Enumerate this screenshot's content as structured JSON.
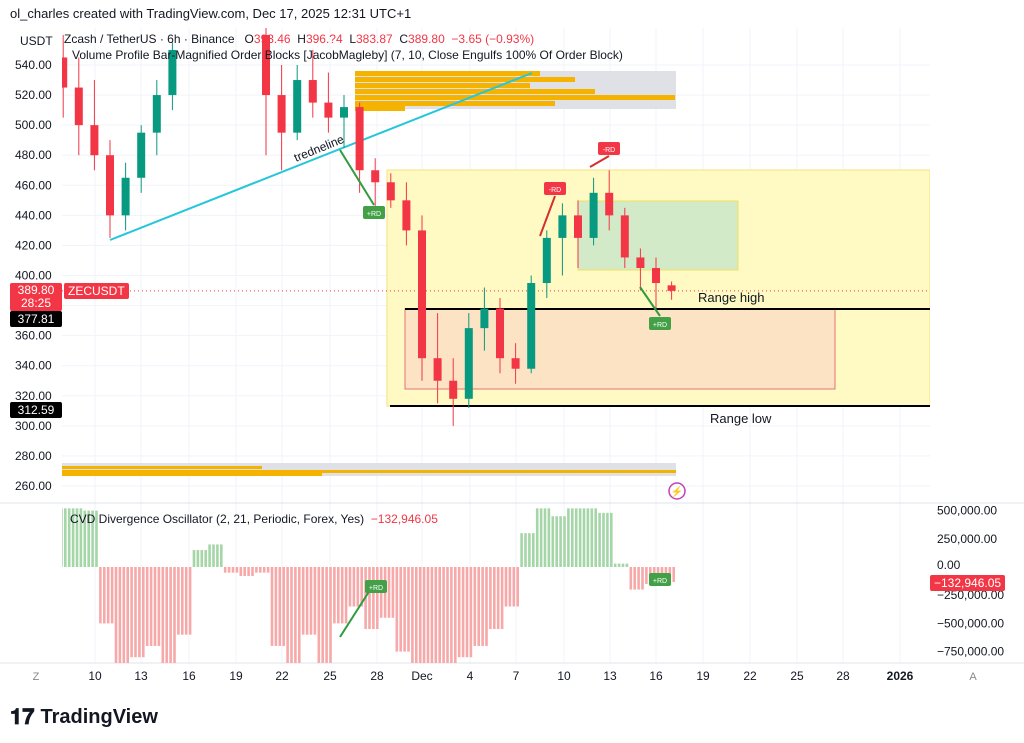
{
  "credit": "ol_charles created with TradingView.com, Dec 17, 2025 12:31 UTC+1",
  "currency": "USDT",
  "legend": {
    "symbol": "Zcash / TetherUS · 6h · Binance",
    "o_label": "O",
    "o": "393.46",
    "h_label": "H",
    "h": "396.?4",
    "l_label": "L",
    "l": "383.87",
    "c_label": "C",
    "c": "389.80",
    "change": "−3.65 (−0.93%)",
    "indicator": "Volume Profile Bar-Magnified Order Blocks [JacobMagleby] (7, 10, Close Engulfs 100% Of Order Block)"
  },
  "oscillator": {
    "title": "CVD Divergence Oscillator (2, 21, Periodic, Forex, Yes)",
    "value": "−132,946.05",
    "axis_labels": [
      "500,000.00",
      "250,000.00",
      "0.00",
      "−250,000.00",
      "−500,000.00",
      "−750,000.00"
    ],
    "axis_values": [
      500000,
      250000,
      0,
      -250000,
      -500000,
      -750000
    ],
    "current_tag": "−132,946.05"
  },
  "price_tags": {
    "last": "389.80",
    "countdown": "28:25",
    "symbol_tag": "ZECUSDT",
    "range_high": "377.81",
    "range_low": "312.59"
  },
  "annotations": {
    "trendline": "tredneline",
    "range_high": "Range high",
    "range_low": "Range low",
    "bear_div": "-RD",
    "bull_div": "+RD"
  },
  "time_axis": {
    "labels": [
      "10",
      "13",
      "16",
      "19",
      "22",
      "25",
      "28",
      "Dec",
      "4",
      "7",
      "10",
      "13",
      "16",
      "19",
      "22",
      "25",
      "28",
      "2026"
    ],
    "left_btn": "Z",
    "right_btn": "A"
  },
  "brand": "TradingView",
  "colors": {
    "up": "#089981",
    "down": "#f23645",
    "range_box": "#fff9c4",
    "ob_bull": "#c8e6c9",
    "ob_bear": "#fce0c4",
    "trendline": "#26c6da"
  },
  "chart_data": {
    "type": "candlestick",
    "ylim": [
      250,
      550
    ],
    "y_ticks": [
      260,
      280,
      300,
      320,
      340,
      360,
      380,
      400,
      420,
      440,
      460,
      480,
      500,
      520,
      540
    ],
    "candles": [
      [
        "Nov 8",
        545,
        560,
        505,
        525
      ],
      [
        "Nov 9",
        525,
        545,
        480,
        500
      ],
      [
        "Nov 10",
        500,
        530,
        470,
        480
      ],
      [
        "Nov 11",
        480,
        490,
        425,
        440
      ],
      [
        "Nov 12",
        440,
        475,
        430,
        465
      ],
      [
        "Nov 13",
        465,
        500,
        455,
        495
      ],
      [
        "Nov 14",
        495,
        530,
        480,
        520
      ],
      [
        "Nov 15",
        520,
        555,
        510,
        550
      ],
      [
        "Nov 21",
        560,
        565,
        480,
        520
      ],
      [
        "Nov 22",
        520,
        540,
        470,
        495
      ],
      [
        "Nov 23",
        495,
        540,
        490,
        530
      ],
      [
        "Nov 24",
        530,
        550,
        505,
        515
      ],
      [
        "Nov 25",
        515,
        535,
        495,
        505
      ],
      [
        "Nov 26",
        505,
        520,
        485,
        512
      ],
      [
        "Nov 27",
        512,
        515,
        455,
        470
      ],
      [
        "Nov 28",
        470,
        478,
        440,
        462
      ],
      [
        "Nov 29",
        462,
        468,
        445,
        450
      ],
      [
        "Nov 30",
        450,
        462,
        420,
        430
      ],
      [
        "Dec 1",
        430,
        440,
        330,
        345
      ],
      [
        "Dec 2",
        345,
        375,
        315,
        330
      ],
      [
        "Dec 3",
        330,
        345,
        300,
        318
      ],
      [
        "Dec 4",
        318,
        375,
        312,
        365
      ],
      [
        "Dec 5",
        365,
        392,
        350,
        378
      ],
      [
        "Dec 6",
        378,
        385,
        335,
        345
      ],
      [
        "Dec 7",
        345,
        355,
        328,
        338
      ],
      [
        "Dec 8",
        338,
        400,
        335,
        395
      ],
      [
        "Dec 9",
        395,
        430,
        385,
        425
      ],
      [
        "Dec 10",
        425,
        448,
        400,
        440
      ],
      [
        "Dec 11",
        440,
        450,
        405,
        425
      ],
      [
        "Dec 12",
        425,
        465,
        420,
        455
      ],
      [
        "Dec 13",
        455,
        470,
        430,
        440
      ],
      [
        "Dec 14",
        440,
        445,
        405,
        412
      ],
      [
        "Dec 15",
        412,
        418,
        390,
        405
      ],
      [
        "Dec 16",
        405,
        412,
        378,
        395
      ],
      [
        "Dec 17",
        393.46,
        396,
        383.87,
        389.8
      ]
    ],
    "cvd": [
      [
        "Nov 8",
        520000
      ],
      [
        "Nov 9",
        520000
      ],
      [
        "Nov 10",
        500000
      ],
      [
        "Nov 11",
        -500000
      ],
      [
        "Nov 12",
        -880000
      ],
      [
        "Nov 13",
        -800000
      ],
      [
        "Nov 14",
        -700000
      ],
      [
        "Nov 15",
        -880000
      ],
      [
        "Nov 16",
        -600000
      ],
      [
        "Nov 17",
        150000
      ],
      [
        "Nov 18",
        200000
      ],
      [
        "Nov 19",
        -50000
      ],
      [
        "Nov 20",
        -80000
      ],
      [
        "Nov 21",
        -50000
      ],
      [
        "Nov 22",
        -700000
      ],
      [
        "Nov 23",
        -880000
      ],
      [
        "Nov 24",
        -600000
      ],
      [
        "Nov 25",
        -850000
      ],
      [
        "Nov 26",
        -500000
      ],
      [
        "Nov 27",
        -350000
      ],
      [
        "Nov 28",
        -550000
      ],
      [
        "Nov 29",
        -450000
      ],
      [
        "Nov 30",
        -750000
      ],
      [
        "Dec 1",
        -880000
      ],
      [
        "Dec 2",
        -880000
      ],
      [
        "Dec 3",
        -880000
      ],
      [
        "Dec 4",
        -800000
      ],
      [
        "Dec 5",
        -700000
      ],
      [
        "Dec 6",
        -550000
      ],
      [
        "Dec 7",
        -350000
      ],
      [
        "Dec 8",
        300000
      ],
      [
        "Dec 9",
        520000
      ],
      [
        "Dec 10",
        450000
      ],
      [
        "Dec 11",
        520000
      ],
      [
        "Dec 12",
        520000
      ],
      [
        "Dec 13",
        480000
      ],
      [
        "Dec 14",
        30000
      ],
      [
        "Dec 15",
        -200000
      ],
      [
        "Dec 16",
        -150000
      ],
      [
        "Dec 17",
        -132946.05
      ]
    ]
  }
}
